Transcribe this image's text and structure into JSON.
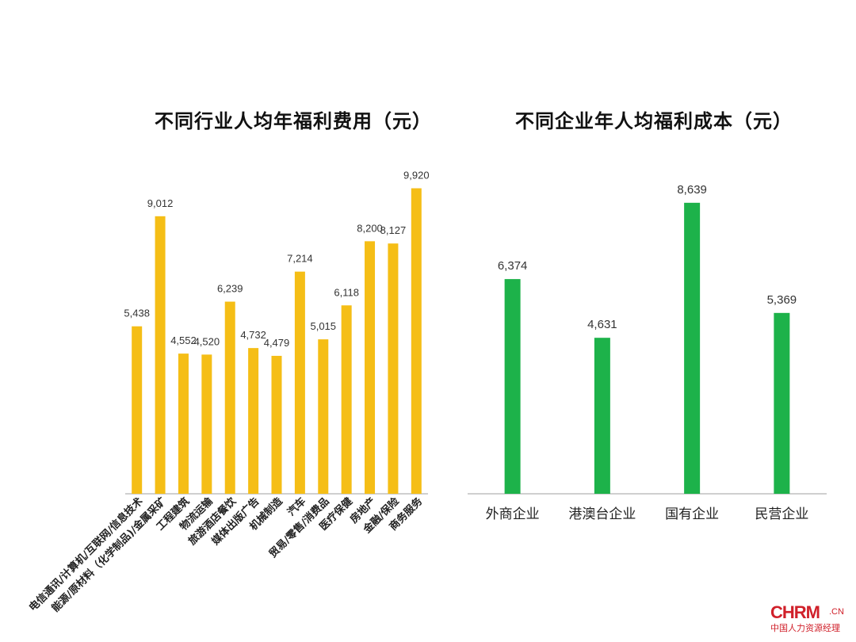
{
  "chart_data": [
    {
      "type": "bar",
      "title": "不同行业人均年福利费用（元）",
      "categories": [
        "电信通讯/计算机/互联网/信息技术",
        "能源/原材料（化学制品)/金属采矿",
        "工程建筑",
        "物流运输",
        "旅游酒店餐饮",
        "媒体出版广告",
        "机械制造",
        "汽车",
        "贸易/零售/消费品",
        "医疗保健",
        "房地产",
        "金融/保险",
        "商务服务"
      ],
      "values": [
        5438,
        9012,
        4552,
        4520,
        6239,
        4732,
        4479,
        7214,
        5015,
        6118,
        8200,
        8127,
        9920
      ],
      "value_labels": [
        "5,438",
        "9,012",
        "4,552",
        "4,520",
        "6,239",
        "4,732",
        "4,479",
        "7,214",
        "5,015",
        "6,118",
        "8,200",
        "8,127",
        "9,920"
      ],
      "color": "#F5BE16",
      "ylim": [
        0,
        10500
      ],
      "grid": false,
      "xlabel": "",
      "ylabel": ""
    },
    {
      "type": "bar",
      "title": "不同企业年人均福利成本（元）",
      "categories": [
        "外商企业",
        "港澳台企业",
        "国有企业",
        "民营企业"
      ],
      "values": [
        6374,
        4631,
        8639,
        5369
      ],
      "value_labels": [
        "6,374",
        "4,631",
        "8,639",
        "5,369"
      ],
      "color": "#1DB24A",
      "ylim": [
        0,
        9600
      ],
      "grid": false,
      "xlabel": "",
      "ylabel": ""
    }
  ],
  "logo": {
    "main": "CHRM",
    "suffix": ".CN",
    "sub": "中国人力资源经理"
  }
}
